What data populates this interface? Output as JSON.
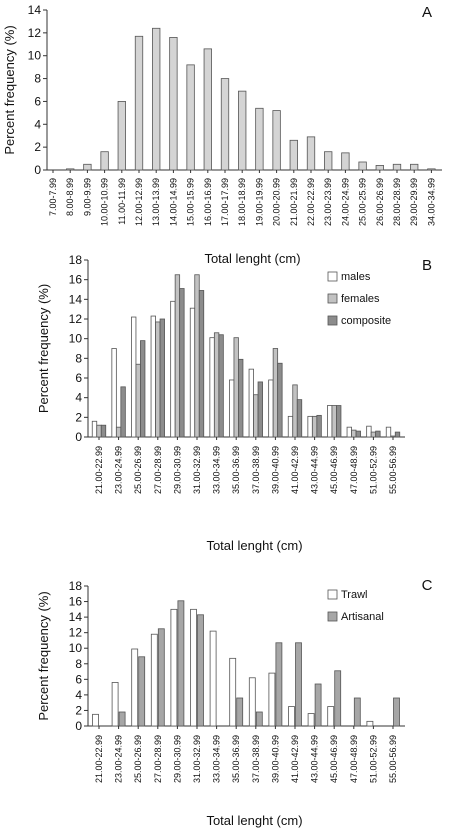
{
  "colors": {
    "axis": "#333333",
    "bar_outline": "#555555",
    "A_fill": "#d4d4d4",
    "white": "#ffffff",
    "light_gray": "#c2c2c2",
    "dark_gray": "#8c8c8c",
    "mid_gray": "#a6a6a6"
  },
  "chart_data": [
    {
      "panel": "A",
      "type": "bar",
      "xlabel": "Total lenght (cm)",
      "ylabel": "Percent frequency (%)",
      "ylim": [
        0,
        14
      ],
      "yticks": [
        0,
        2,
        4,
        6,
        8,
        10,
        12,
        14
      ],
      "categories": [
        "7.00-7.99",
        "8.00-8.99",
        "9.00-9.99",
        "10.00-10.99",
        "11.00-11.99",
        "12.00-12.99",
        "13.00-13.99",
        "14.00-14.99",
        "15.00-15.99",
        "16.00-16.99",
        "17.00-17.99",
        "18.00-18.99",
        "19.00-19.99",
        "20.00-20.99",
        "21.00-21.99",
        "22.00-22.99",
        "23.00-23.99",
        "24.00-24.99",
        "25.00-25.99",
        "26.00-26.99",
        "28.00-28.99",
        "29.00-29.99",
        "34.00-34.99"
      ],
      "series": [
        {
          "values": [
            0.0,
            0.1,
            0.5,
            1.6,
            6.0,
            11.7,
            12.4,
            11.6,
            9.2,
            10.6,
            8.0,
            6.9,
            5.4,
            5.2,
            2.6,
            2.9,
            1.6,
            1.5,
            0.7,
            0.4,
            0.5,
            0.5,
            0.1
          ]
        }
      ],
      "legend": []
    },
    {
      "panel": "B",
      "type": "bar",
      "xlabel": "Total lenght (cm)",
      "ylabel": "Percent frequency (%)",
      "ylim": [
        0,
        18
      ],
      "yticks": [
        0,
        2,
        4,
        6,
        8,
        10,
        12,
        14,
        16,
        18
      ],
      "categories": [
        "21.00-22.99",
        "23.00-24.99",
        "25.00-26.99",
        "27.00-28.99",
        "29.00-30.99",
        "31.00-32.99",
        "33.00-34.99",
        "35.00-36.99",
        "37.00-38.99",
        "39.00-40.99",
        "41.00-42.99",
        "43.00-44.99",
        "45.00-46.99",
        "47.00-48.99",
        "51.00-52.99",
        "55.00-56.99"
      ],
      "series": [
        {
          "name": "males",
          "values": [
            1.6,
            9.0,
            12.2,
            12.3,
            13.8,
            13.1,
            10.1,
            5.8,
            6.9,
            5.8,
            2.1,
            2.1,
            3.2,
            1.0,
            1.1,
            1.0
          ]
        },
        {
          "name": "females",
          "values": [
            1.2,
            1.0,
            7.4,
            11.7,
            16.5,
            16.5,
            10.6,
            10.1,
            4.3,
            9.0,
            5.3,
            2.1,
            3.2,
            0.7,
            0.5,
            0.1
          ]
        },
        {
          "name": "composite",
          "values": [
            1.2,
            5.1,
            9.8,
            12.0,
            15.1,
            14.9,
            10.4,
            7.9,
            5.6,
            7.5,
            3.8,
            2.2,
            3.2,
            0.6,
            0.6,
            0.5
          ]
        }
      ],
      "legend": [
        "males",
        "females",
        "composite"
      ]
    },
    {
      "panel": "C",
      "type": "bar",
      "xlabel": "Total lenght (cm)",
      "ylabel": "Percent frequency (%)",
      "ylim": [
        0,
        18
      ],
      "yticks": [
        0,
        2,
        4,
        6,
        8,
        10,
        12,
        14,
        16,
        18
      ],
      "categories": [
        "21.00-22.99",
        "23.00-24.99",
        "25.00-26.99",
        "27.00-28.99",
        "29.00-30.99",
        "31.00-32.99",
        "33.00-34.99",
        "35.00-36.99",
        "37.00-38.99",
        "39.00-40.99",
        "41.00-42.99",
        "43.00-44.99",
        "45.00-46.99",
        "47.00-48.99",
        "51.00-52.99",
        "55.00-56.99"
      ],
      "series": [
        {
          "name": "Trawl",
          "values": [
            1.5,
            5.6,
            9.9,
            11.8,
            15.0,
            15.0,
            12.2,
            8.7,
            6.2,
            6.8,
            2.5,
            1.6,
            2.5,
            0.0,
            0.6,
            0.0
          ]
        },
        {
          "name": "Artisanal",
          "values": [
            0.0,
            1.8,
            8.9,
            12.5,
            16.1,
            14.3,
            0.0,
            3.6,
            1.8,
            10.7,
            10.7,
            5.4,
            7.1,
            3.6,
            0.0,
            3.6
          ]
        }
      ],
      "legend": [
        "Trawl",
        "Artisanal"
      ]
    }
  ]
}
